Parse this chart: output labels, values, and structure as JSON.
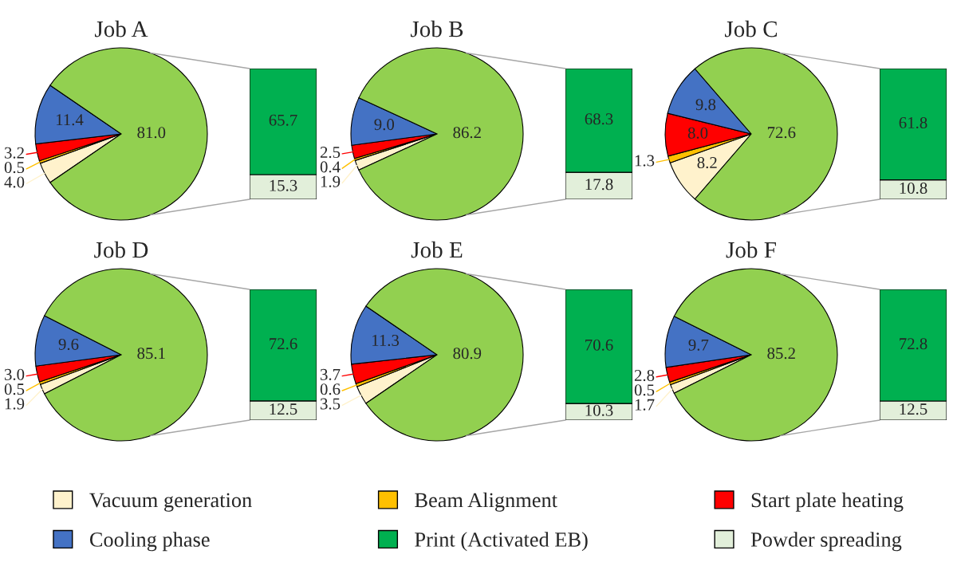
{
  "chart_data": [
    {
      "type": "pie",
      "title": "Job A",
      "categories": [
        "Vacuum generation",
        "Beam Alignment",
        "Start plate heating",
        "Cooling phase",
        null
      ],
      "values": [
        4.0,
        0.5,
        3.2,
        11.4,
        81.0
      ],
      "value_labels": [
        "4.0",
        "0.5",
        "3.2",
        "11.4",
        "81.0"
      ],
      "colors": [
        "#fff2cc",
        "#ffc000",
        "#ff0000",
        "#4472c4",
        "#92d050"
      ],
      "legend": "bottom"
    },
    {
      "type": "bar",
      "categories": [
        null
      ],
      "stacked": true,
      "tick_labels": false,
      "data_labels": true,
      "legend": "bottom",
      "series": [
        {
          "name": "Powder spreading",
          "color": "#e2efda",
          "values": [
            15.3
          ]
        },
        {
          "name": "Print (Activated EB)",
          "color": "#00b050",
          "values": [
            65.7
          ]
        }
      ]
    },
    {
      "type": "pie",
      "title": "Job B",
      "categories": [
        null,
        null,
        null,
        null,
        null
      ],
      "values": [
        1.9,
        0.4,
        2.5,
        9.0,
        86.2
      ],
      "value_labels": [
        "1.9",
        "0.4",
        "2.5",
        "9.0",
        "86.2"
      ],
      "colors": [
        "#fff2cc",
        "#ffc000",
        "#ff0000",
        "#4472c4",
        "#92d050"
      ]
    },
    {
      "type": "bar",
      "categories": [
        null
      ],
      "stacked": true,
      "tick_labels": false,
      "data_labels": true,
      "series": [
        {
          "color": "#e2efda",
          "values": [
            17.8
          ]
        },
        {
          "color": "#00b050",
          "values": [
            68.3
          ]
        }
      ]
    },
    {
      "type": "pie",
      "title": "Job C",
      "categories": [
        null,
        null,
        null,
        null,
        null
      ],
      "values": [
        8.2,
        1.3,
        8.0,
        9.8,
        72.6
      ],
      "value_labels": [
        "8.2",
        "1.3",
        "8.0",
        "9.8",
        "72.6"
      ],
      "colors": [
        "#fff2cc",
        "#ffc000",
        "#ff0000",
        "#4472c4",
        "#92d050"
      ]
    },
    {
      "type": "bar",
      "categories": [
        null
      ],
      "stacked": true,
      "tick_labels": false,
      "data_labels": true,
      "series": [
        {
          "color": "#e2efda",
          "values": [
            10.8
          ]
        },
        {
          "color": "#00b050",
          "values": [
            61.8
          ]
        }
      ]
    },
    {
      "type": "pie",
      "title": "Job D",
      "categories": [
        null,
        null,
        null,
        null,
        null
      ],
      "values": [
        1.9,
        0.5,
        3.0,
        9.6,
        85.1
      ],
      "value_labels": [
        "1.9",
        "0.5",
        "3.0",
        "9.6",
        "85.1"
      ],
      "colors": [
        "#fff2cc",
        "#ffc000",
        "#ff0000",
        "#4472c4",
        "#92d050"
      ]
    },
    {
      "type": "bar",
      "categories": [
        null
      ],
      "stacked": true,
      "tick_labels": false,
      "data_labels": true,
      "series": [
        {
          "color": "#e2efda",
          "values": [
            12.5
          ]
        },
        {
          "color": "#00b050",
          "values": [
            72.6
          ]
        }
      ]
    },
    {
      "type": "pie",
      "title": "Job E",
      "categories": [
        null,
        null,
        null,
        null,
        null
      ],
      "values": [
        3.5,
        0.6,
        3.7,
        11.3,
        80.9
      ],
      "value_labels": [
        "3.5",
        "0.6",
        "3.7",
        "11.3",
        "80.9"
      ],
      "colors": [
        "#fff2cc",
        "#ffc000",
        "#ff0000",
        "#4472c4",
        "#92d050"
      ]
    },
    {
      "type": "bar",
      "categories": [
        null
      ],
      "stacked": true,
      "tick_labels": false,
      "data_labels": true,
      "series": [
        {
          "color": "#e2efda",
          "values": [
            10.3
          ]
        },
        {
          "color": "#00b050",
          "values": [
            70.6
          ]
        }
      ]
    },
    {
      "type": "pie",
      "title": "Job F",
      "categories": [
        null,
        null,
        null,
        null,
        null
      ],
      "values": [
        1.7,
        0.5,
        2.8,
        9.7,
        85.2
      ],
      "value_labels": [
        "1.7",
        "0.5",
        "2.8",
        "9.7",
        "85.2"
      ],
      "colors": [
        "#fff2cc",
        "#ffc000",
        "#ff0000",
        "#4472c4",
        "#92d050"
      ]
    },
    {
      "type": "bar",
      "categories": [
        null
      ],
      "stacked": true,
      "tick_labels": false,
      "data_labels": true,
      "series": [
        {
          "color": "#e2efda",
          "values": [
            12.5
          ]
        },
        {
          "color": "#00b050",
          "values": [
            72.8
          ]
        }
      ]
    }
  ]
}
